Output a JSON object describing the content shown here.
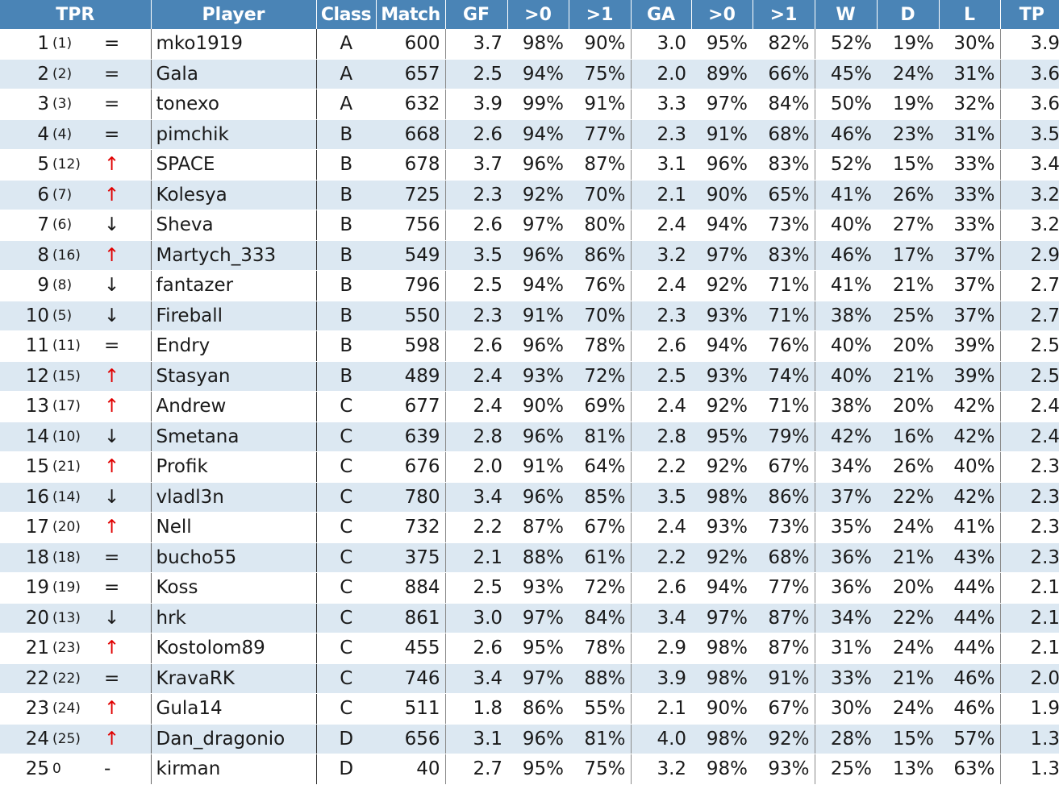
{
  "header": {
    "tpr": "TPR",
    "player": "Player",
    "class": "Class",
    "match": "Match",
    "gf": "GF",
    "gf_gt0": ">0",
    "gf_gt1": ">1",
    "ga": "GA",
    "ga_gt0": ">0",
    "ga_gt1": ">1",
    "w": "W",
    "d": "D",
    "l": "L",
    "tp": "TP"
  },
  "colors": {
    "header_bg": "#4a84b6",
    "stripe_bg": "#dce8f2",
    "up_arrow": "#e00000"
  },
  "rows": [
    {
      "rank": "1",
      "prev": "(1)",
      "trend": "same",
      "arrow": "=",
      "player": "mko1919",
      "class": "A",
      "match": "600",
      "gf": "3.7",
      "gf_gt0": "98%",
      "gf_gt1": "90%",
      "ga": "3.0",
      "ga_gt0": "95%",
      "ga_gt1": "82%",
      "w": "52%",
      "d": "19%",
      "l": "30%",
      "tp": "3.9"
    },
    {
      "rank": "2",
      "prev": "(2)",
      "trend": "same",
      "arrow": "=",
      "player": "Gala",
      "class": "A",
      "match": "657",
      "gf": "2.5",
      "gf_gt0": "94%",
      "gf_gt1": "75%",
      "ga": "2.0",
      "ga_gt0": "89%",
      "ga_gt1": "66%",
      "w": "45%",
      "d": "24%",
      "l": "31%",
      "tp": "3.6"
    },
    {
      "rank": "3",
      "prev": "(3)",
      "trend": "same",
      "arrow": "=",
      "player": "tonexo",
      "class": "A",
      "match": "632",
      "gf": "3.9",
      "gf_gt0": "99%",
      "gf_gt1": "91%",
      "ga": "3.3",
      "ga_gt0": "97%",
      "ga_gt1": "84%",
      "w": "50%",
      "d": "19%",
      "l": "32%",
      "tp": "3.6"
    },
    {
      "rank": "4",
      "prev": "(4)",
      "trend": "same",
      "arrow": "=",
      "player": "pimchik",
      "class": "B",
      "match": "668",
      "gf": "2.6",
      "gf_gt0": "94%",
      "gf_gt1": "77%",
      "ga": "2.3",
      "ga_gt0": "91%",
      "ga_gt1": "68%",
      "w": "46%",
      "d": "23%",
      "l": "31%",
      "tp": "3.5"
    },
    {
      "rank": "5",
      "prev": "(12)",
      "trend": "up",
      "arrow": "↑",
      "player": "SPACE",
      "class": "B",
      "match": "678",
      "gf": "3.7",
      "gf_gt0": "96%",
      "gf_gt1": "87%",
      "ga": "3.1",
      "ga_gt0": "96%",
      "ga_gt1": "83%",
      "w": "52%",
      "d": "15%",
      "l": "33%",
      "tp": "3.4"
    },
    {
      "rank": "6",
      "prev": "(7)",
      "trend": "up",
      "arrow": "↑",
      "player": "Kolesya",
      "class": "B",
      "match": "725",
      "gf": "2.3",
      "gf_gt0": "92%",
      "gf_gt1": "70%",
      "ga": "2.1",
      "ga_gt0": "90%",
      "ga_gt1": "65%",
      "w": "41%",
      "d": "26%",
      "l": "33%",
      "tp": "3.2"
    },
    {
      "rank": "7",
      "prev": "(6)",
      "trend": "down",
      "arrow": "↓",
      "player": "Sheva",
      "class": "B",
      "match": "756",
      "gf": "2.6",
      "gf_gt0": "97%",
      "gf_gt1": "80%",
      "ga": "2.4",
      "ga_gt0": "94%",
      "ga_gt1": "73%",
      "w": "40%",
      "d": "27%",
      "l": "33%",
      "tp": "3.2"
    },
    {
      "rank": "8",
      "prev": "(16)",
      "trend": "up",
      "arrow": "↑",
      "player": "Martych_333",
      "class": "B",
      "match": "549",
      "gf": "3.5",
      "gf_gt0": "96%",
      "gf_gt1": "86%",
      "ga": "3.2",
      "ga_gt0": "97%",
      "ga_gt1": "83%",
      "w": "46%",
      "d": "17%",
      "l": "37%",
      "tp": "2.9"
    },
    {
      "rank": "9",
      "prev": "(8)",
      "trend": "down",
      "arrow": "↓",
      "player": "fantazer",
      "class": "B",
      "match": "796",
      "gf": "2.5",
      "gf_gt0": "94%",
      "gf_gt1": "76%",
      "ga": "2.4",
      "ga_gt0": "92%",
      "ga_gt1": "71%",
      "w": "41%",
      "d": "21%",
      "l": "37%",
      "tp": "2.7"
    },
    {
      "rank": "10",
      "prev": "(5)",
      "trend": "down",
      "arrow": "↓",
      "player": "Fireball",
      "class": "B",
      "match": "550",
      "gf": "2.3",
      "gf_gt0": "91%",
      "gf_gt1": "70%",
      "ga": "2.3",
      "ga_gt0": "93%",
      "ga_gt1": "71%",
      "w": "38%",
      "d": "25%",
      "l": "37%",
      "tp": "2.7"
    },
    {
      "rank": "11",
      "prev": "(11)",
      "trend": "same",
      "arrow": "=",
      "player": "Endry",
      "class": "B",
      "match": "598",
      "gf": "2.6",
      "gf_gt0": "96%",
      "gf_gt1": "78%",
      "ga": "2.6",
      "ga_gt0": "94%",
      "ga_gt1": "76%",
      "w": "40%",
      "d": "20%",
      "l": "39%",
      "tp": "2.5"
    },
    {
      "rank": "12",
      "prev": "(15)",
      "trend": "up",
      "arrow": "↑",
      "player": "Stasyan",
      "class": "B",
      "match": "489",
      "gf": "2.4",
      "gf_gt0": "93%",
      "gf_gt1": "72%",
      "ga": "2.5",
      "ga_gt0": "93%",
      "ga_gt1": "74%",
      "w": "40%",
      "d": "21%",
      "l": "39%",
      "tp": "2.5"
    },
    {
      "rank": "13",
      "prev": "(17)",
      "trend": "up",
      "arrow": "↑",
      "player": "Andrew",
      "class": "C",
      "match": "677",
      "gf": "2.4",
      "gf_gt0": "90%",
      "gf_gt1": "69%",
      "ga": "2.4",
      "ga_gt0": "92%",
      "ga_gt1": "71%",
      "w": "38%",
      "d": "20%",
      "l": "42%",
      "tp": "2.4"
    },
    {
      "rank": "14",
      "prev": "(10)",
      "trend": "down",
      "arrow": "↓",
      "player": "Smetana",
      "class": "C",
      "match": "639",
      "gf": "2.8",
      "gf_gt0": "96%",
      "gf_gt1": "81%",
      "ga": "2.8",
      "ga_gt0": "95%",
      "ga_gt1": "79%",
      "w": "42%",
      "d": "16%",
      "l": "42%",
      "tp": "2.4"
    },
    {
      "rank": "15",
      "prev": "(21)",
      "trend": "up",
      "arrow": "↑",
      "player": "Profik",
      "class": "C",
      "match": "676",
      "gf": "2.0",
      "gf_gt0": "91%",
      "gf_gt1": "64%",
      "ga": "2.2",
      "ga_gt0": "92%",
      "ga_gt1": "67%",
      "w": "34%",
      "d": "26%",
      "l": "40%",
      "tp": "2.3"
    },
    {
      "rank": "16",
      "prev": "(14)",
      "trend": "down",
      "arrow": "↓",
      "player": "vladl3n",
      "class": "C",
      "match": "780",
      "gf": "3.4",
      "gf_gt0": "96%",
      "gf_gt1": "85%",
      "ga": "3.5",
      "ga_gt0": "98%",
      "ga_gt1": "86%",
      "w": "37%",
      "d": "22%",
      "l": "42%",
      "tp": "2.3"
    },
    {
      "rank": "17",
      "prev": "(20)",
      "trend": "up",
      "arrow": "↑",
      "player": "Nell",
      "class": "C",
      "match": "732",
      "gf": "2.2",
      "gf_gt0": "87%",
      "gf_gt1": "67%",
      "ga": "2.4",
      "ga_gt0": "93%",
      "ga_gt1": "73%",
      "w": "35%",
      "d": "24%",
      "l": "41%",
      "tp": "2.3"
    },
    {
      "rank": "18",
      "prev": "(18)",
      "trend": "same",
      "arrow": "=",
      "player": "bucho55",
      "class": "C",
      "match": "375",
      "gf": "2.1",
      "gf_gt0": "88%",
      "gf_gt1": "61%",
      "ga": "2.2",
      "ga_gt0": "92%",
      "ga_gt1": "68%",
      "w": "36%",
      "d": "21%",
      "l": "43%",
      "tp": "2.3"
    },
    {
      "rank": "19",
      "prev": "(19)",
      "trend": "same",
      "arrow": "=",
      "player": "Koss",
      "class": "C",
      "match": "884",
      "gf": "2.5",
      "gf_gt0": "93%",
      "gf_gt1": "72%",
      "ga": "2.6",
      "ga_gt0": "94%",
      "ga_gt1": "77%",
      "w": "36%",
      "d": "20%",
      "l": "44%",
      "tp": "2.1"
    },
    {
      "rank": "20",
      "prev": "(13)",
      "trend": "down",
      "arrow": "↓",
      "player": "hrk",
      "class": "C",
      "match": "861",
      "gf": "3.0",
      "gf_gt0": "97%",
      "gf_gt1": "84%",
      "ga": "3.4",
      "ga_gt0": "97%",
      "ga_gt1": "87%",
      "w": "34%",
      "d": "22%",
      "l": "44%",
      "tp": "2.1"
    },
    {
      "rank": "21",
      "prev": "(23)",
      "trend": "up",
      "arrow": "↑",
      "player": "Kostolom89",
      "class": "C",
      "match": "455",
      "gf": "2.6",
      "gf_gt0": "95%",
      "gf_gt1": "78%",
      "ga": "2.9",
      "ga_gt0": "98%",
      "ga_gt1": "87%",
      "w": "31%",
      "d": "24%",
      "l": "44%",
      "tp": "2.1"
    },
    {
      "rank": "22",
      "prev": "(22)",
      "trend": "same",
      "arrow": "=",
      "player": "KravaRK",
      "class": "C",
      "match": "746",
      "gf": "3.4",
      "gf_gt0": "97%",
      "gf_gt1": "88%",
      "ga": "3.9",
      "ga_gt0": "98%",
      "ga_gt1": "91%",
      "w": "33%",
      "d": "21%",
      "l": "46%",
      "tp": "2.0"
    },
    {
      "rank": "23",
      "prev": "(24)",
      "trend": "up",
      "arrow": "↑",
      "player": "Gula14",
      "class": "C",
      "match": "511",
      "gf": "1.8",
      "gf_gt0": "86%",
      "gf_gt1": "55%",
      "ga": "2.1",
      "ga_gt0": "90%",
      "ga_gt1": "67%",
      "w": "30%",
      "d": "24%",
      "l": "46%",
      "tp": "1.9"
    },
    {
      "rank": "24",
      "prev": "(25)",
      "trend": "up",
      "arrow": "↑",
      "player": "Dan_dragonio",
      "class": "D",
      "match": "656",
      "gf": "3.1",
      "gf_gt0": "96%",
      "gf_gt1": "81%",
      "ga": "4.0",
      "ga_gt0": "98%",
      "ga_gt1": "92%",
      "w": "28%",
      "d": "15%",
      "l": "57%",
      "tp": "1.3"
    },
    {
      "rank": "25",
      "prev": "0",
      "trend": "none",
      "arrow": "-",
      "player": "kirman",
      "class": "D",
      "match": "40",
      "gf": "2.7",
      "gf_gt0": "95%",
      "gf_gt1": "75%",
      "ga": "3.2",
      "ga_gt0": "98%",
      "ga_gt1": "93%",
      "w": "25%",
      "d": "13%",
      "l": "63%",
      "tp": "1.3"
    }
  ]
}
